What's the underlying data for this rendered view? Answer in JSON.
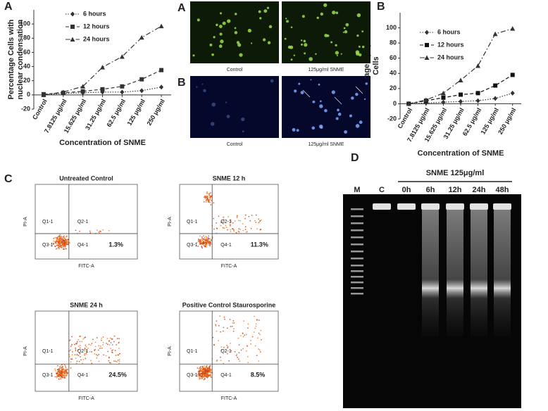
{
  "chart_data": [
    {
      "type": "line",
      "panel_label": "A",
      "ylabel": "Percentage Cells with nuclear condensation",
      "xlabel": "Concentration of SNME",
      "categories": [
        "Control",
        "7.8125 μg/ml",
        "15.625 μg/ml",
        "31.25 μg/ml",
        "62.5 μg/ml",
        "125 μg/ml",
        "250 μg/ml"
      ],
      "series": [
        {
          "name": "6 hours",
          "color": "#333333",
          "marker": "diamond",
          "dash": "dot",
          "values": [
            0,
            2,
            3,
            4,
            4,
            6,
            11
          ]
        },
        {
          "name": "12 hours",
          "color": "#333333",
          "marker": "square",
          "dash": "dash",
          "values": [
            1,
            3,
            5,
            8,
            12,
            22,
            35
          ]
        },
        {
          "name": "24 hours",
          "color": "#333333",
          "marker": "triangle",
          "dash": "dashdot",
          "values": [
            0,
            4,
            12,
            39,
            54,
            81,
            97
          ]
        }
      ],
      "ylim": [
        -20,
        120
      ],
      "yticks": [
        -20,
        0,
        20,
        40,
        60,
        80,
        100
      ]
    },
    {
      "type": "line",
      "panel_label": "B",
      "ylabel": "Percentage Apoptotic Cells",
      "xlabel": "Concentration of SNME",
      "categories": [
        "Control",
        "7.8125 μg/ml",
        "15.625 μg/ml",
        "31.25 μg/ml",
        "62.5 μg/ml",
        "125 μg/ml",
        "250 μg/ml"
      ],
      "series": [
        {
          "name": "6 hours",
          "color": "#333333",
          "marker": "diamond",
          "dash": "dot",
          "values": [
            0,
            1,
            2,
            3,
            4,
            7,
            14
          ]
        },
        {
          "name": "12 hours",
          "color": "#111111",
          "marker": "square",
          "dash": "dash",
          "values": [
            0,
            4,
            8,
            12,
            14,
            24,
            38
          ]
        },
        {
          "name": "24 hours",
          "color": "#333333",
          "marker": "triangle",
          "dash": "dashdot",
          "values": [
            0,
            5,
            14,
            31,
            50,
            92,
            99
          ]
        }
      ],
      "ylim": [
        -20,
        120
      ],
      "yticks": [
        -20,
        0,
        20,
        40,
        60,
        80,
        100
      ]
    }
  ],
  "micrographs": {
    "rows": [
      {
        "label": "A",
        "captions": [
          "Control",
          "125μg/ml  SNME"
        ]
      },
      {
        "label": "B",
        "captions": [
          "Control",
          "125μg/ml  SNME"
        ]
      }
    ]
  },
  "flow_cytometry": {
    "label": "C",
    "x_axis": "FITC-A",
    "y_axis": "PI-A",
    "plots": [
      {
        "title": "Untreated Control",
        "quadrants": [
          "Q1-1",
          "Q2-1",
          "Q3-1",
          "Q4-1"
        ],
        "value": "1.3%"
      },
      {
        "title": "SNME 12 h",
        "quadrants": [
          "Q1-1",
          "Q2-1",
          "Q3-1",
          "Q4-1"
        ],
        "value": "11.3%"
      },
      {
        "title": "SNME 24 h",
        "quadrants": [
          "Q1-1",
          "Q2-1",
          "Q3-1",
          "Q4-1"
        ],
        "value": "24.5%"
      },
      {
        "title": "Positive Control Staurosporine",
        "quadrants": [
          "Q1-1",
          "Q2-1",
          "Q3-1",
          "Q4-1"
        ],
        "value": "8.5%"
      }
    ]
  },
  "gel": {
    "label": "D",
    "treatment": "SNME 125μg/ml",
    "lanes": [
      "M",
      "C",
      "0h",
      "6h",
      "12h",
      "24h",
      "48h"
    ]
  }
}
